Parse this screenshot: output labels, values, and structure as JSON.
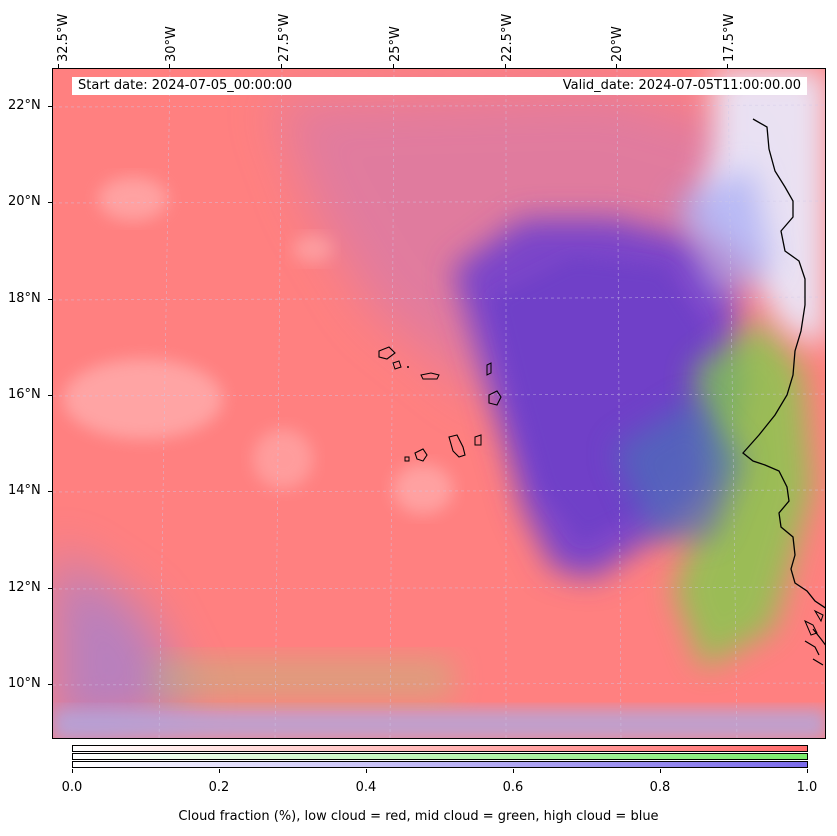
{
  "info": {
    "start_date": "Start date: 2024-07-05_00:00:00",
    "valid_date": "Valid_date: 2024-07-05T11:00:00.00"
  },
  "lon_labels": [
    "32.5°W",
    "30°W",
    "27.5°W",
    "25°W",
    "22.5°W",
    "20°W",
    "17.5°W"
  ],
  "lat_labels": [
    "22°N",
    "20°N",
    "18°N",
    "16°N",
    "14°N",
    "12°N",
    "10°N"
  ],
  "colorbar": {
    "tick_labels": [
      "0.0",
      "0.2",
      "0.4",
      "0.6",
      "0.8",
      "1.0"
    ],
    "caption": "Cloud fraction (%), low cloud = red, mid cloud = green, high cloud = blue",
    "colors": {
      "low": "#ff6b6b",
      "mid": "#7aeb6b",
      "high": "#7b6bea"
    }
  },
  "map": {
    "colors": {
      "low_cloud": "#ff8080",
      "high_cloud": "#7a45c9",
      "mid_cloud": "#7ad04a",
      "clear": "#e8ecff"
    }
  }
}
